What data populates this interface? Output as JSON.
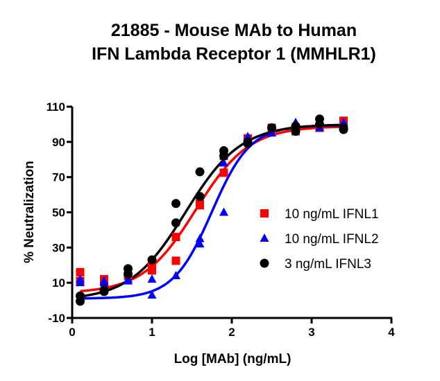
{
  "chart_data": {
    "type": "scatter",
    "title": [
      "21885 - Mouse MAb to Human",
      "IFN Lambda Receptor 1 (MMHLR1)"
    ],
    "xlabel": "Log [MAb] (ng/mL)",
    "ylabel": "% Neutralization",
    "xlim": [
      0,
      4
    ],
    "ylim": [
      -10,
      110
    ],
    "xticks": [
      0,
      1,
      2,
      3,
      4
    ],
    "yticks": [
      -10,
      10,
      30,
      50,
      70,
      90,
      110
    ],
    "legend_position": "right",
    "series": [
      {
        "name": "10 ng/mL IFNL1",
        "color": "#ff0000",
        "marker": "square",
        "points": [
          [
            0.1,
            16
          ],
          [
            0.1,
            11
          ],
          [
            0.4,
            11
          ],
          [
            0.4,
            12
          ],
          [
            0.7,
            14
          ],
          [
            1.0,
            20
          ],
          [
            1.0,
            17
          ],
          [
            1.3,
            36
          ],
          [
            1.3,
            22.5
          ],
          [
            1.6,
            55
          ],
          [
            1.6,
            54
          ],
          [
            1.9,
            72.5
          ],
          [
            1.9,
            82
          ],
          [
            2.2,
            92
          ],
          [
            2.5,
            98
          ],
          [
            2.8,
            96
          ],
          [
            3.1,
            98
          ],
          [
            3.4,
            102
          ]
        ],
        "fit": {
          "bottom": 4,
          "top": 99,
          "logEC50": 1.55,
          "hill": 1.3
        }
      },
      {
        "name": "10 ng/mL IFNL2",
        "color": "#0000ff",
        "marker": "triangle",
        "points": [
          [
            0.1,
            12
          ],
          [
            0.1,
            10
          ],
          [
            0.4,
            11
          ],
          [
            0.4,
            10
          ],
          [
            0.7,
            11
          ],
          [
            0.7,
            12
          ],
          [
            1.0,
            12
          ],
          [
            1.0,
            3
          ],
          [
            1.3,
            14
          ],
          [
            1.6,
            32
          ],
          [
            1.6,
            35
          ],
          [
            1.9,
            50
          ],
          [
            1.9,
            78
          ],
          [
            2.2,
            93
          ],
          [
            2.5,
            95
          ],
          [
            2.8,
            101
          ],
          [
            3.1,
            98
          ],
          [
            3.4,
            101
          ]
        ],
        "fit": {
          "bottom": 1,
          "top": 99.5,
          "logEC50": 1.75,
          "hill": 1.8
        }
      },
      {
        "name": "3 ng/mL IFNL3",
        "color": "#000000",
        "marker": "circle",
        "points": [
          [
            0.1,
            2.5
          ],
          [
            0.1,
            -0.5
          ],
          [
            0.4,
            5
          ],
          [
            0.4,
            6
          ],
          [
            0.7,
            18
          ],
          [
            0.7,
            15
          ],
          [
            1.0,
            23
          ],
          [
            1.3,
            55
          ],
          [
            1.3,
            44
          ],
          [
            1.6,
            73
          ],
          [
            1.6,
            59
          ],
          [
            1.9,
            85
          ],
          [
            1.9,
            82
          ],
          [
            2.2,
            89
          ],
          [
            2.2,
            90
          ],
          [
            2.5,
            98
          ],
          [
            2.8,
            99
          ],
          [
            2.8,
            96
          ],
          [
            3.1,
            103
          ],
          [
            3.1,
            100
          ],
          [
            3.4,
            98
          ],
          [
            3.4,
            97
          ]
        ],
        "fit": {
          "bottom": 0,
          "top": 100,
          "logEC50": 1.42,
          "hill": 1.25
        }
      }
    ]
  }
}
